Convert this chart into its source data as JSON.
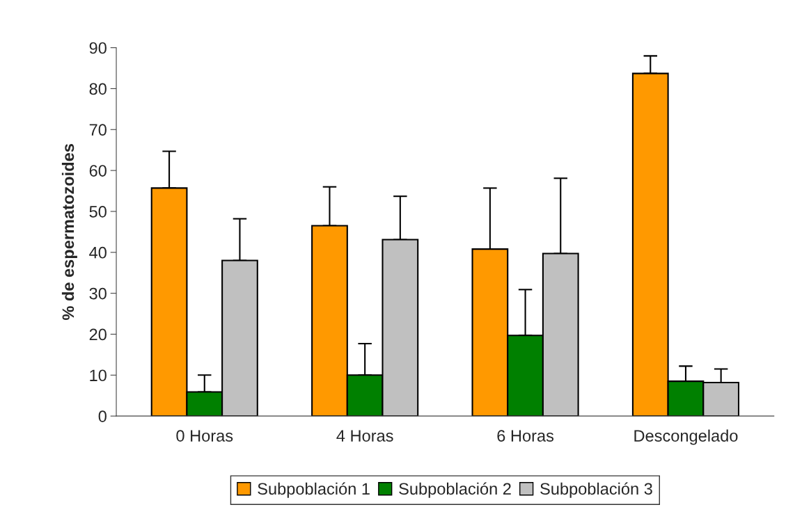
{
  "chart_data": {
    "type": "bar",
    "ylabel": "% de espermatozoides",
    "categories": [
      "0 Horas",
      "4 Horas",
      "6 Horas",
      "Descongelado"
    ],
    "series": [
      {
        "name": "Subpoblación 1",
        "color": "#ff9900",
        "values": [
          55.7,
          46.5,
          40.8,
          83.7
        ],
        "errors": [
          [
            55.7,
            64.7
          ],
          [
            46.5,
            56.0
          ],
          [
            40.8,
            55.7
          ],
          [
            83.7,
            88.0
          ]
        ]
      },
      {
        "name": "Subpoblación 2",
        "color": "#008000",
        "values": [
          5.9,
          10.0,
          19.7,
          8.5
        ],
        "errors": [
          [
            5.9,
            10.0
          ],
          [
            10.0,
            17.7
          ],
          [
            19.7,
            30.9
          ],
          [
            8.5,
            12.2
          ]
        ]
      },
      {
        "name": "Subpoblación 3",
        "color": "#c0c0c0",
        "values": [
          38.0,
          43.1,
          39.7,
          8.2
        ],
        "errors": [
          [
            38.0,
            48.2
          ],
          [
            43.1,
            53.7
          ],
          [
            39.7,
            58.1
          ],
          [
            8.2,
            11.5
          ]
        ]
      }
    ],
    "ylim": [
      0,
      90
    ],
    "yticks": [
      0,
      10,
      20,
      30,
      40,
      50,
      60,
      70,
      80,
      90
    ],
    "grid": false,
    "legend": "bottom"
  }
}
